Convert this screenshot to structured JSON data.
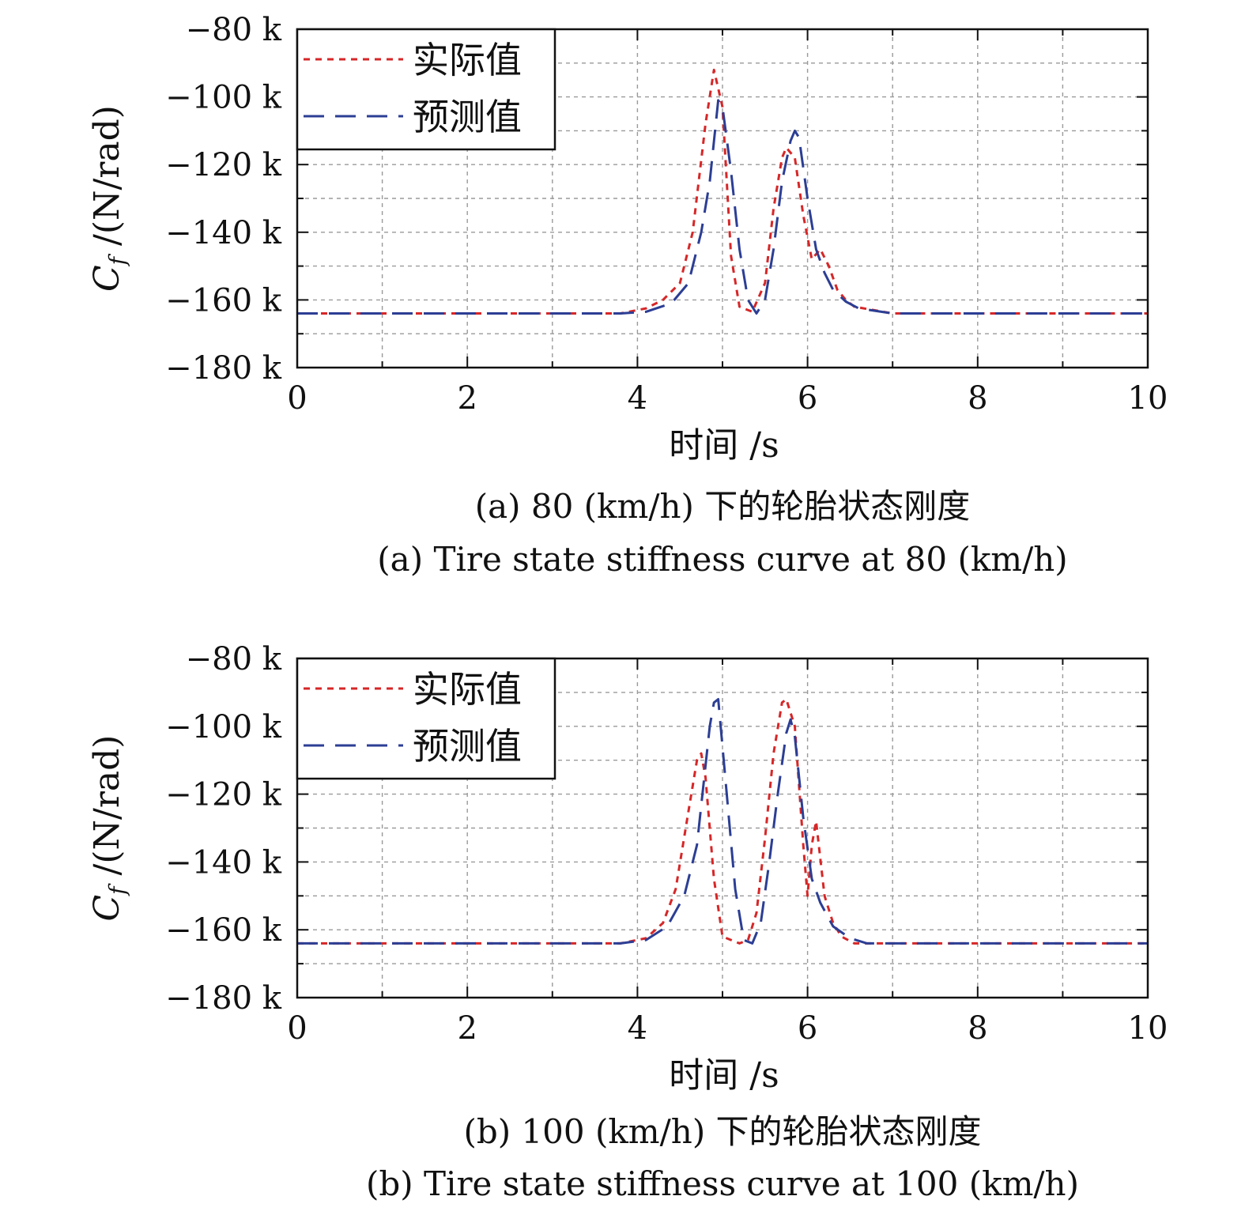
{
  "chart_data": [
    {
      "type": "line",
      "xlabel": "时间 /s",
      "ylabel_main": "C",
      "ylabel_sub": "f",
      "ylabel_rest": " /(N/rad)",
      "xlim": [
        0,
        10
      ],
      "ylim": [
        -180000,
        -80000
      ],
      "xticks": [
        "0",
        "2",
        "4",
        "6",
        "8",
        "10"
      ],
      "yticks": [
        "−80 k",
        "−100 k",
        "−120 k",
        "−140 k",
        "−160 k",
        "−180 k"
      ],
      "grid": true,
      "legend_position": "top-left",
      "caption_cn": "(a) 80 (km/h) 下的轮胎状态刚度",
      "caption_en": "(a) Tire state stiffness curve at 80 (km/h)",
      "series": [
        {
          "name": "实际值",
          "color": "#d62728",
          "style": "dotted",
          "x": [
            0,
            1,
            2,
            3,
            3.8,
            4.1,
            4.3,
            4.5,
            4.65,
            4.8,
            4.9,
            5.0,
            5.1,
            5.2,
            5.35,
            5.5,
            5.6,
            5.7,
            5.75,
            5.85,
            5.95,
            6.05,
            6.15,
            6.25,
            6.35,
            6.45,
            6.55,
            7.0,
            8.0,
            9.0,
            10.0
          ],
          "y": [
            -164000,
            -164000,
            -164000,
            -164000,
            -164000,
            -162500,
            -160000,
            -155000,
            -140000,
            -108000,
            -92000,
            -103000,
            -147000,
            -162000,
            -163500,
            -155000,
            -133000,
            -118000,
            -115000,
            -118000,
            -135000,
            -148000,
            -145000,
            -150000,
            -157000,
            -160000,
            -162000,
            -164000,
            -164000,
            -164000,
            -164000
          ]
        },
        {
          "name": "预测值",
          "color": "#2c3e94",
          "style": "dashed",
          "x": [
            0,
            1,
            2,
            3,
            3.8,
            4.1,
            4.4,
            4.6,
            4.75,
            4.85,
            4.95,
            5.0,
            5.1,
            5.2,
            5.3,
            5.4,
            5.5,
            5.6,
            5.7,
            5.8,
            5.85,
            5.9,
            6.0,
            6.1,
            6.2,
            6.3,
            6.45,
            6.6,
            7.0,
            8.0,
            9.0,
            10.0
          ],
          "y": [
            -164000,
            -164000,
            -164000,
            -164000,
            -164000,
            -163500,
            -161000,
            -155000,
            -140000,
            -125000,
            -101000,
            -103000,
            -122000,
            -145000,
            -160000,
            -164000,
            -160000,
            -145000,
            -125000,
            -113000,
            -110000,
            -112000,
            -130000,
            -145000,
            -152000,
            -157000,
            -160500,
            -162500,
            -164000,
            -164000,
            -164000,
            -164000
          ]
        }
      ]
    },
    {
      "type": "line",
      "xlabel": "时间 /s",
      "ylabel_main": "C",
      "ylabel_sub": "f",
      "ylabel_rest": " /(N/rad)",
      "xlim": [
        0,
        10
      ],
      "ylim": [
        -180000,
        -80000
      ],
      "xticks": [
        "0",
        "2",
        "4",
        "6",
        "8",
        "10"
      ],
      "yticks": [
        "−80 k",
        "−100 k",
        "−120 k",
        "−140 k",
        "−160 k",
        "−180 k"
      ],
      "grid": true,
      "legend_position": "top-left",
      "caption_cn": "(b) 100 (km/h) 下的轮胎状态刚度",
      "caption_en": "(b) Tire state stiffness curve at 100 (km/h)",
      "series": [
        {
          "name": "实际值",
          "color": "#d62728",
          "style": "dotted",
          "x": [
            0,
            1,
            2,
            3,
            3.8,
            4.1,
            4.3,
            4.45,
            4.6,
            4.7,
            4.75,
            4.8,
            4.9,
            5.0,
            5.1,
            5.2,
            5.3,
            5.4,
            5.5,
            5.6,
            5.7,
            5.75,
            5.85,
            5.95,
            6.0,
            6.05,
            6.1,
            6.2,
            6.3,
            6.4,
            6.55,
            7.0,
            8.0,
            9.0,
            10.0
          ],
          "y": [
            -164000,
            -164000,
            -164000,
            -164000,
            -164000,
            -162500,
            -158000,
            -148000,
            -125000,
            -110000,
            -108000,
            -115000,
            -145000,
            -162000,
            -163000,
            -164000,
            -163000,
            -155000,
            -133000,
            -108000,
            -93000,
            -92000,
            -100000,
            -135000,
            -150000,
            -135000,
            -128000,
            -150000,
            -158000,
            -162000,
            -164000,
            -164000,
            -164000,
            -164000,
            -164000
          ]
        },
        {
          "name": "预测值",
          "color": "#2c3e94",
          "style": "dashed",
          "x": [
            0,
            1,
            2,
            3,
            3.8,
            4.1,
            4.35,
            4.55,
            4.7,
            4.85,
            4.9,
            4.95,
            5.05,
            5.15,
            5.25,
            5.35,
            5.45,
            5.55,
            5.65,
            5.75,
            5.8,
            5.85,
            5.95,
            6.05,
            6.15,
            6.3,
            6.5,
            6.7,
            7.0,
            8.0,
            9.0,
            10.0
          ],
          "y": [
            -164000,
            -164000,
            -164000,
            -164000,
            -164000,
            -163000,
            -159000,
            -150000,
            -135000,
            -100000,
            -93000,
            -92000,
            -120000,
            -148000,
            -163000,
            -164000,
            -158000,
            -140000,
            -120000,
            -102000,
            -98000,
            -103000,
            -127000,
            -145000,
            -152000,
            -159000,
            -162500,
            -164000,
            -164000,
            -164000,
            -164000,
            -164000
          ]
        }
      ]
    }
  ]
}
